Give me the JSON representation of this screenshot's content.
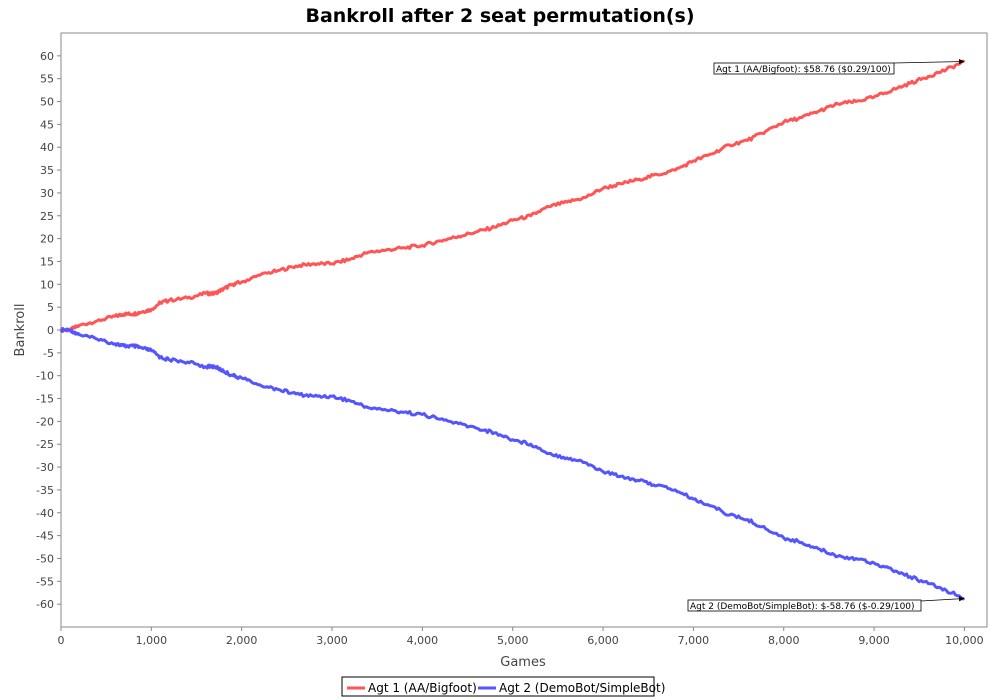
{
  "chart_data": {
    "type": "line",
    "title": "Bankroll after 2 seat permutation(s)",
    "xlabel": "Games",
    "ylabel": "Bankroll",
    "xlim": [
      0,
      10250
    ],
    "ylim": [
      -65,
      65
    ],
    "x_ticks": [
      0,
      1000,
      2000,
      3000,
      4000,
      5000,
      6000,
      7000,
      8000,
      9000,
      10000
    ],
    "x_tick_labels": [
      "0",
      "1,000",
      "2,000",
      "3,000",
      "4,000",
      "5,000",
      "6,000",
      "7,000",
      "8,000",
      "9,000",
      "10,000"
    ],
    "y_ticks": [
      60,
      55,
      50,
      45,
      40,
      35,
      30,
      25,
      20,
      15,
      10,
      5,
      0,
      -5,
      -10,
      -15,
      -20,
      -25,
      -30,
      -35,
      -40,
      -45,
      -50,
      -55,
      -60
    ],
    "y_tick_labels": [
      "60",
      "55",
      "50",
      "45",
      "40",
      "35",
      "30",
      "25",
      "20",
      "15",
      "10",
      "5",
      "0",
      "-5",
      "-10",
      "-15",
      "-20",
      "-25",
      "-30",
      "-35",
      "-40",
      "-45",
      "-50",
      "-55",
      "-60"
    ],
    "grid": false,
    "legend_position": "bottom",
    "x": [
      0,
      100,
      200,
      400,
      600,
      700,
      800,
      900,
      1000,
      1100,
      1200,
      1400,
      1600,
      1700,
      1800,
      1900,
      2000,
      2200,
      2400,
      2600,
      2800,
      3000,
      3200,
      3400,
      3600,
      3800,
      4000,
      4200,
      4400,
      4600,
      4800,
      5000,
      5200,
      5400,
      5600,
      5800,
      6000,
      6200,
      6400,
      6600,
      6800,
      7000,
      7200,
      7400,
      7600,
      7800,
      8000,
      8200,
      8400,
      8600,
      8800,
      9000,
      9200,
      9400,
      9600,
      9800,
      10000
    ],
    "series": [
      {
        "name": "Agt 1 (AA/Bigfoot)",
        "color": "#ff5555",
        "values": [
          0,
          0,
          1,
          2,
          3,
          3.5,
          3.5,
          4,
          4.5,
          6,
          6.5,
          7,
          8,
          8,
          9,
          10,
          10.5,
          12,
          13,
          14,
          14.5,
          14.5,
          15.5,
          17,
          17.5,
          18,
          18.5,
          19.5,
          20.5,
          21.5,
          22.5,
          24,
          25,
          27,
          28,
          29,
          31,
          32,
          33,
          34,
          35,
          37,
          38.5,
          40.5,
          41.5,
          43.5,
          45.5,
          46.5,
          48,
          49.5,
          50,
          51,
          52.5,
          54,
          55.5,
          57,
          58.76
        ]
      },
      {
        "name": "Agt 2 (DemoBot/SimpleBot)",
        "color": "#5555ff",
        "values": [
          0,
          0,
          -1,
          -2,
          -3,
          -3.5,
          -3.5,
          -4,
          -4.5,
          -6,
          -6.5,
          -7,
          -8,
          -8,
          -9,
          -10,
          -10.5,
          -12,
          -13,
          -14,
          -14.5,
          -14.5,
          -15.5,
          -17,
          -17.5,
          -18,
          -18.5,
          -19.5,
          -20.5,
          -21.5,
          -22.5,
          -24,
          -25,
          -27,
          -28,
          -29,
          -31,
          -32,
          -33,
          -34,
          -35,
          -37,
          -38.5,
          -40.5,
          -41.5,
          -43.5,
          -45.5,
          -46.5,
          -48,
          -49.5,
          -50,
          -51,
          -52.5,
          -54,
          -55.5,
          -57,
          -58.76
        ]
      }
    ],
    "annotations": [
      {
        "text": "Agt 1 (AA/Bigfoot): $58.76 ($0.29/100)",
        "x": 10000,
        "y": 58.76
      },
      {
        "text": "Agt 2 (DemoBot/SimpleBot): $-58.76 ($-0.29/100)",
        "x": 10000,
        "y": -58.76
      }
    ]
  }
}
